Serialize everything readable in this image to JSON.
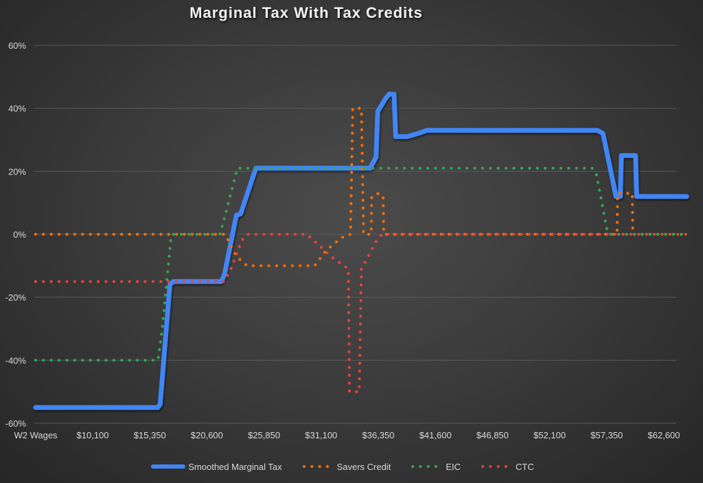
{
  "chart_data": {
    "type": "line",
    "title": "Marginal Tax With Tax Credits",
    "xlabel": "W2 Wages",
    "ylabel": "",
    "ylim": [
      -0.6,
      0.6
    ],
    "xlim": [
      4850,
      65000
    ],
    "grid": true,
    "legend_position": "bottom",
    "y_ticks": [
      "60%",
      "40%",
      "20%",
      "0%",
      "-20%",
      "-40%",
      "-60%"
    ],
    "y_tick_values": [
      0.6,
      0.4,
      0.2,
      0,
      -0.2,
      -0.4,
      -0.6
    ],
    "x_ticks": [
      "W2 Wages",
      "$10,100",
      "$15,350",
      "$20,600",
      "$25,850",
      "$31,100",
      "$36,350",
      "$41,600",
      "$46,850",
      "$52,100",
      "$57,350",
      "$62,600"
    ],
    "x_tick_values": [
      null,
      10100,
      15350,
      20600,
      25850,
      31100,
      36350,
      41600,
      46850,
      52100,
      57350,
      62600
    ],
    "series": [
      {
        "name": "Smoothed Marginal Tax",
        "color": "#4285f4",
        "style": "solid",
        "points": [
          [
            4850,
            -0.55
          ],
          [
            16100,
            -0.55
          ],
          [
            16300,
            -0.54
          ],
          [
            17200,
            -0.16
          ],
          [
            17500,
            -0.15
          ],
          [
            21900,
            -0.15
          ],
          [
            22200,
            -0.13
          ],
          [
            23300,
            0.06
          ],
          [
            23700,
            0.065
          ],
          [
            25100,
            0.21
          ],
          [
            35600,
            0.21
          ],
          [
            36150,
            0.245
          ],
          [
            36300,
            0.39
          ],
          [
            37000,
            0.43
          ],
          [
            37350,
            0.445
          ],
          [
            37800,
            0.445
          ],
          [
            37950,
            0.31
          ],
          [
            39000,
            0.31
          ],
          [
            40000,
            0.32
          ],
          [
            40800,
            0.33
          ],
          [
            56500,
            0.33
          ],
          [
            57000,
            0.32
          ],
          [
            58200,
            0.12
          ],
          [
            58600,
            0.12
          ],
          [
            58700,
            0.25
          ],
          [
            60000,
            0.25
          ],
          [
            60100,
            0.12
          ],
          [
            64700,
            0.12
          ]
        ]
      },
      {
        "name": "Savers Credit",
        "color": "#ff6d01",
        "style": "dotted",
        "points": [
          [
            4850,
            0
          ],
          [
            22300,
            0
          ],
          [
            22700,
            -0.03
          ],
          [
            23300,
            -0.07
          ],
          [
            24300,
            -0.1
          ],
          [
            30500,
            -0.1
          ],
          [
            31600,
            -0.05
          ],
          [
            33000,
            -0.01
          ],
          [
            33800,
            0
          ],
          [
            34000,
            0.4
          ],
          [
            34800,
            0.4
          ],
          [
            35000,
            0
          ],
          [
            35700,
            0
          ],
          [
            35750,
            0.12
          ],
          [
            36400,
            0.13
          ],
          [
            36800,
            0.12
          ],
          [
            36850,
            0
          ],
          [
            58300,
            0
          ],
          [
            58350,
            0.13
          ],
          [
            59700,
            0.13
          ],
          [
            59750,
            0
          ],
          [
            64700,
            0
          ]
        ]
      },
      {
        "name": "EIC",
        "color": "#34a853",
        "style": "dotted",
        "points": [
          [
            4850,
            -0.4
          ],
          [
            16100,
            -0.4
          ],
          [
            16500,
            -0.3
          ],
          [
            17300,
            -0.01
          ],
          [
            17400,
            0
          ],
          [
            21800,
            0
          ],
          [
            22200,
            0.05
          ],
          [
            23400,
            0.21
          ],
          [
            56000,
            0.21
          ],
          [
            56400,
            0.19
          ],
          [
            57400,
            0.01
          ],
          [
            57600,
            0
          ],
          [
            64700,
            0
          ]
        ]
      },
      {
        "name": "CTC",
        "color": "#ea4335",
        "style": "dotted",
        "points": [
          [
            4850,
            -0.15
          ],
          [
            22200,
            -0.15
          ],
          [
            22800,
            -0.11
          ],
          [
            23800,
            -0.02
          ],
          [
            24300,
            0
          ],
          [
            29800,
            0
          ],
          [
            32000,
            -0.07
          ],
          [
            33600,
            -0.11
          ],
          [
            33700,
            -0.5
          ],
          [
            34600,
            -0.5
          ],
          [
            34800,
            -0.11
          ],
          [
            36200,
            -0.02
          ],
          [
            36700,
            0
          ],
          [
            64700,
            0
          ]
        ]
      }
    ]
  }
}
